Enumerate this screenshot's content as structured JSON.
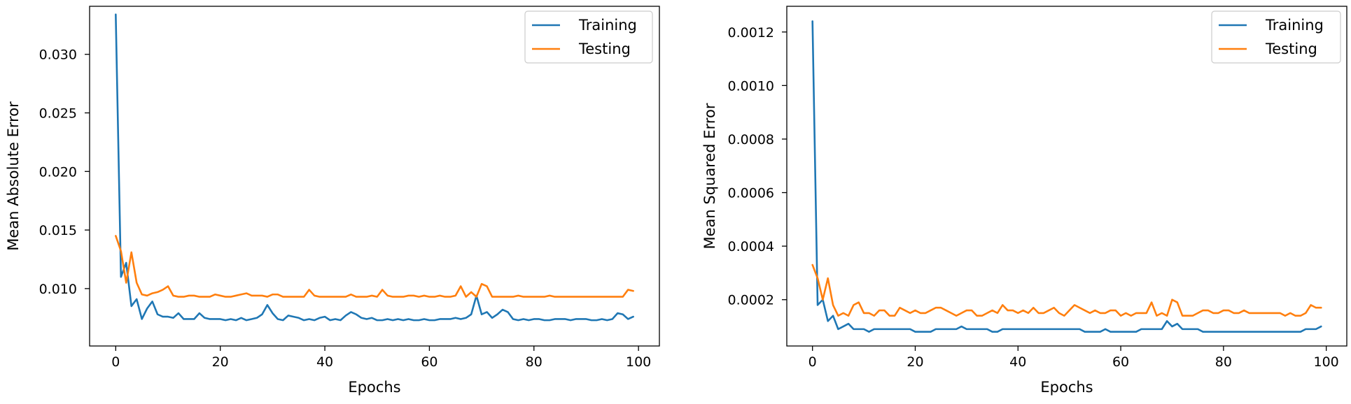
{
  "colors": {
    "training": "#1f77b4",
    "testing": "#ff7f0e",
    "axis": "#000000",
    "legend_border": "#cccccc"
  },
  "chart_data": [
    {
      "type": "line",
      "title": "",
      "xlabel": "Epochs",
      "ylabel": "Mean Absolute Error",
      "xlim": [
        -5,
        104
      ],
      "ylim": [
        0.0051,
        0.0341
      ],
      "xticks": [
        0,
        20,
        40,
        60,
        80,
        100
      ],
      "xtick_labels": [
        "0",
        "20",
        "40",
        "60",
        "80",
        "100"
      ],
      "yticks": [
        0.01,
        0.015,
        0.02,
        0.025,
        0.03
      ],
      "ytick_labels": [
        "0.010",
        "0.015",
        "0.020",
        "0.025",
        "0.030"
      ],
      "grid": false,
      "legend_position": "top-right",
      "series": [
        {
          "name": "Training",
          "color_key": "training",
          "values": [
            0.0334,
            0.011,
            0.0122,
            0.0085,
            0.0091,
            0.0074,
            0.0083,
            0.0089,
            0.0078,
            0.0076,
            0.0076,
            0.0075,
            0.0079,
            0.0074,
            0.0074,
            0.0074,
            0.0079,
            0.0075,
            0.0074,
            0.0074,
            0.0074,
            0.0073,
            0.0074,
            0.0073,
            0.0075,
            0.0073,
            0.0074,
            0.0075,
            0.0078,
            0.0086,
            0.0079,
            0.0074,
            0.0073,
            0.0077,
            0.0076,
            0.0075,
            0.0073,
            0.0074,
            0.0073,
            0.0075,
            0.0076,
            0.0073,
            0.0074,
            0.0073,
            0.0077,
            0.008,
            0.0078,
            0.0075,
            0.0074,
            0.0075,
            0.0073,
            0.0073,
            0.0074,
            0.0073,
            0.0074,
            0.0073,
            0.0074,
            0.0073,
            0.0073,
            0.0074,
            0.0073,
            0.0073,
            0.0074,
            0.0074,
            0.0074,
            0.0075,
            0.0074,
            0.0075,
            0.0078,
            0.0094,
            0.0078,
            0.008,
            0.0075,
            0.0078,
            0.0082,
            0.008,
            0.0074,
            0.0073,
            0.0074,
            0.0073,
            0.0074,
            0.0074,
            0.0073,
            0.0073,
            0.0074,
            0.0074,
            0.0074,
            0.0073,
            0.0074,
            0.0074,
            0.0074,
            0.0073,
            0.0073,
            0.0074,
            0.0073,
            0.0074,
            0.0079,
            0.0078,
            0.0074,
            0.0076
          ]
        },
        {
          "name": "Testing",
          "color_key": "testing",
          "values": [
            0.0145,
            0.0132,
            0.0105,
            0.0131,
            0.0105,
            0.0095,
            0.0094,
            0.0096,
            0.0097,
            0.0099,
            0.0102,
            0.0094,
            0.0093,
            0.0093,
            0.0094,
            0.0094,
            0.0093,
            0.0093,
            0.0093,
            0.0095,
            0.0094,
            0.0093,
            0.0093,
            0.0094,
            0.0095,
            0.0096,
            0.0094,
            0.0094,
            0.0094,
            0.0093,
            0.0095,
            0.0095,
            0.0093,
            0.0093,
            0.0093,
            0.0093,
            0.0093,
            0.0099,
            0.0094,
            0.0093,
            0.0093,
            0.0093,
            0.0093,
            0.0093,
            0.0093,
            0.0095,
            0.0093,
            0.0093,
            0.0093,
            0.0094,
            0.0093,
            0.0099,
            0.0094,
            0.0093,
            0.0093,
            0.0093,
            0.0094,
            0.0094,
            0.0093,
            0.0094,
            0.0093,
            0.0093,
            0.0094,
            0.0093,
            0.0093,
            0.0094,
            0.0102,
            0.0093,
            0.0097,
            0.0093,
            0.0104,
            0.0102,
            0.0093,
            0.0093,
            0.0093,
            0.0093,
            0.0093,
            0.0094,
            0.0093,
            0.0093,
            0.0093,
            0.0093,
            0.0093,
            0.0094,
            0.0093,
            0.0093,
            0.0093,
            0.0093,
            0.0093,
            0.0093,
            0.0093,
            0.0093,
            0.0093,
            0.0093,
            0.0093,
            0.0093,
            0.0093,
            0.0093,
            0.0099,
            0.0098
          ]
        }
      ]
    },
    {
      "type": "line",
      "title": "",
      "xlabel": "Epochs",
      "ylabel": "Mean Squared Error",
      "xlim": [
        -5,
        104
      ],
      "ylim": [
        2.7e-05,
        0.001296
      ],
      "xticks": [
        0,
        20,
        40,
        60,
        80,
        100
      ],
      "xtick_labels": [
        "0",
        "20",
        "40",
        "60",
        "80",
        "100"
      ],
      "yticks": [
        0.0002,
        0.0004,
        0.0006,
        0.0008,
        0.001,
        0.0012
      ],
      "ytick_labels": [
        "0.0002",
        "0.0004",
        "0.0006",
        "0.0008",
        "0.0010",
        "0.0012"
      ],
      "grid": false,
      "legend_position": "top-right",
      "series": [
        {
          "name": "Training",
          "color_key": "training",
          "values": [
            0.00124,
            0.00018,
            0.0002,
            0.00012,
            0.00014,
            9e-05,
            0.0001,
            0.00011,
            9e-05,
            9e-05,
            9e-05,
            8e-05,
            9e-05,
            9e-05,
            9e-05,
            9e-05,
            9e-05,
            9e-05,
            9e-05,
            9e-05,
            8e-05,
            8e-05,
            8e-05,
            8e-05,
            9e-05,
            9e-05,
            9e-05,
            9e-05,
            9e-05,
            0.0001,
            9e-05,
            9e-05,
            9e-05,
            9e-05,
            9e-05,
            8e-05,
            8e-05,
            9e-05,
            9e-05,
            9e-05,
            9e-05,
            9e-05,
            9e-05,
            9e-05,
            9e-05,
            9e-05,
            9e-05,
            9e-05,
            9e-05,
            9e-05,
            9e-05,
            9e-05,
            9e-05,
            8e-05,
            8e-05,
            8e-05,
            8e-05,
            9e-05,
            8e-05,
            8e-05,
            8e-05,
            8e-05,
            8e-05,
            8e-05,
            9e-05,
            9e-05,
            9e-05,
            9e-05,
            9e-05,
            0.00012,
            0.0001,
            0.00011,
            9e-05,
            9e-05,
            9e-05,
            9e-05,
            8e-05,
            8e-05,
            8e-05,
            8e-05,
            8e-05,
            8e-05,
            8e-05,
            8e-05,
            8e-05,
            8e-05,
            8e-05,
            8e-05,
            8e-05,
            8e-05,
            8e-05,
            8e-05,
            8e-05,
            8e-05,
            8e-05,
            8e-05,
            9e-05,
            9e-05,
            9e-05,
            0.0001
          ]
        },
        {
          "name": "Testing",
          "color_key": "testing",
          "values": [
            0.00033,
            0.00028,
            0.0002,
            0.00028,
            0.00018,
            0.00014,
            0.00015,
            0.00014,
            0.00018,
            0.00019,
            0.00015,
            0.00015,
            0.00014,
            0.00016,
            0.00016,
            0.00014,
            0.00014,
            0.00017,
            0.00016,
            0.00015,
            0.00016,
            0.00015,
            0.00015,
            0.00016,
            0.00017,
            0.00017,
            0.00016,
            0.00015,
            0.00014,
            0.00015,
            0.00016,
            0.00016,
            0.00014,
            0.00014,
            0.00015,
            0.00016,
            0.00015,
            0.00018,
            0.00016,
            0.00016,
            0.00015,
            0.00016,
            0.00015,
            0.00017,
            0.00015,
            0.00015,
            0.00016,
            0.00017,
            0.00015,
            0.00014,
            0.00016,
            0.00018,
            0.00017,
            0.00016,
            0.00015,
            0.00016,
            0.00015,
            0.00015,
            0.00016,
            0.00016,
            0.00014,
            0.00015,
            0.00014,
            0.00015,
            0.00015,
            0.00015,
            0.00019,
            0.00014,
            0.00015,
            0.00014,
            0.0002,
            0.00019,
            0.00014,
            0.00014,
            0.00014,
            0.00015,
            0.00016,
            0.00016,
            0.00015,
            0.00015,
            0.00016,
            0.00016,
            0.00015,
            0.00015,
            0.00016,
            0.00015,
            0.00015,
            0.00015,
            0.00015,
            0.00015,
            0.00015,
            0.00015,
            0.00014,
            0.00015,
            0.00014,
            0.00014,
            0.00015,
            0.00018,
            0.00017,
            0.00017
          ]
        }
      ]
    }
  ]
}
